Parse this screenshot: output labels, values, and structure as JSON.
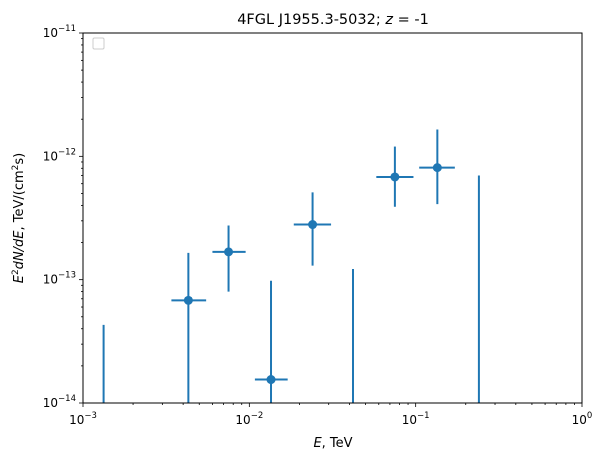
{
  "chart_data": {
    "type": "scatter",
    "title_main": "4FGL J1955.3-5032; ",
    "title_z": "z",
    "title_eq": " = -1",
    "xlabel_var": "E",
    "xlabel_unit": ", TeV",
    "ylabel_parts": {
      "e": "E",
      "sup2": "2",
      "rest": "dN/dE",
      "unit_pre": ", TeV/(cm",
      "unit_sup": "2",
      "unit_post": "s)"
    },
    "xscale": "log",
    "yscale": "log",
    "xlim": [
      0.001,
      1
    ],
    "ylim": [
      1e-14,
      1e-11
    ],
    "x_ticks": [
      {
        "value": 0.001,
        "base": "10",
        "exp": "−3"
      },
      {
        "value": 0.01,
        "base": "10",
        "exp": "−2"
      },
      {
        "value": 0.1,
        "base": "10",
        "exp": "−1"
      },
      {
        "value": 1,
        "base": "10",
        "exp": "0"
      }
    ],
    "y_ticks": [
      {
        "value": 1e-14,
        "base": "10",
        "exp": "−14"
      },
      {
        "value": 1e-13,
        "base": "10",
        "exp": "−13"
      },
      {
        "value": 1e-12,
        "base": "10",
        "exp": "−12"
      },
      {
        "value": 1e-11,
        "base": "10",
        "exp": "−11"
      }
    ],
    "grid": false,
    "legend": "top-left",
    "color": "#1f77b4",
    "points": [
      {
        "x": 0.0043,
        "y": 6.8e-14,
        "xerr": [
          0.0034,
          0.0055
        ],
        "yerr": [
          1e-14,
          1.65e-13
        ]
      },
      {
        "x": 0.0075,
        "y": 1.68e-13,
        "xerr": [
          0.006,
          0.0095
        ],
        "yerr": [
          8e-14,
          2.75e-13
        ]
      },
      {
        "x": 0.0135,
        "y": 1.55e-14,
        "xerr": [
          0.0108,
          0.017
        ],
        "yerr": [
          1e-14,
          9.8e-14
        ]
      },
      {
        "x": 0.024,
        "y": 2.8e-13,
        "xerr": [
          0.0185,
          0.031
        ],
        "yerr": [
          1.3e-13,
          5.1e-13
        ]
      },
      {
        "x": 0.075,
        "y": 6.8e-13,
        "xerr": [
          0.058,
          0.097
        ],
        "yerr": [
          3.9e-13,
          1.2e-12
        ]
      },
      {
        "x": 0.135,
        "y": 8.1e-13,
        "xerr": [
          0.105,
          0.172
        ],
        "yerr": [
          4.1e-13,
          1.65e-12
        ]
      }
    ],
    "upper_limits": [
      {
        "x": 0.00133,
        "y_low": 1e-14,
        "y_high": 4.3e-14
      },
      {
        "x": 0.042,
        "y_low": 1e-14,
        "y_high": 1.22e-13
      },
      {
        "x": 0.24,
        "y_low": 1e-14,
        "y_high": 7e-13
      }
    ]
  }
}
